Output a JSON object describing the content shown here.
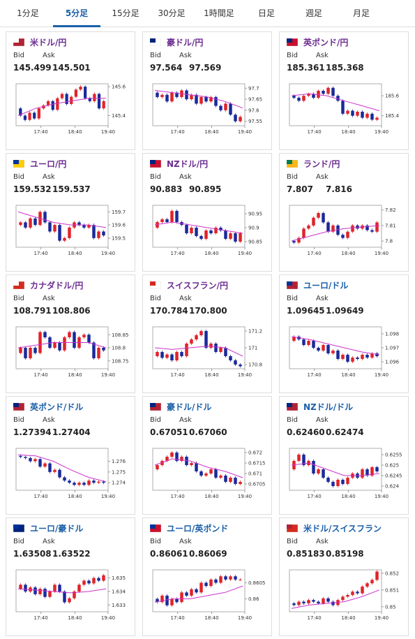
{
  "tabs": [
    "1分足",
    "5分足",
    "15分足",
    "30分足",
    "1時間足",
    "日足",
    "週足",
    "月足"
  ],
  "active_tab": 1,
  "bid_label": "Bid",
  "ask_label": "Ask",
  "x_labels": [
    "17:40",
    "18:40",
    "19:40"
  ],
  "cards": [
    {
      "title": "米ドル/円",
      "title_color": "#6b2c91",
      "bid": "145.499",
      "ask": "145.501",
      "ylim": [
        145.33,
        145.62
      ],
      "yticks": [
        145.6,
        145.4
      ],
      "closes": [
        145.45,
        145.4,
        145.37,
        145.42,
        145.38,
        145.45,
        145.47,
        145.5,
        145.44,
        145.52,
        145.55,
        145.48,
        145.53,
        145.58,
        145.6,
        145.52,
        145.5,
        145.55,
        145.45,
        145.5
      ],
      "ma": [
        145.4,
        145.45,
        145.48,
        145.5,
        145.52,
        145.52
      ]
    },
    {
      "title": "豪ドル/円",
      "title_color": "#6b2c91",
      "bid": "97.564",
      "ask": "97.569",
      "ylim": [
        97.53,
        97.72
      ],
      "yticks": [
        97.7,
        97.65,
        97.6,
        97.55
      ],
      "closes": [
        97.68,
        97.66,
        97.67,
        97.64,
        97.68,
        97.66,
        97.69,
        97.65,
        97.67,
        97.63,
        97.66,
        97.64,
        97.66,
        97.62,
        97.6,
        97.63,
        97.58,
        97.55,
        97.57
      ],
      "ma": [
        97.69,
        97.68,
        97.67,
        97.66,
        97.64,
        97.61
      ]
    },
    {
      "title": "英ポンド/円",
      "title_color": "#6b2c91",
      "bid": "185.361",
      "ask": "185.368",
      "ylim": [
        185.3,
        185.72
      ],
      "yticks": [
        185.6,
        185.4
      ],
      "closes": [
        185.6,
        185.58,
        185.55,
        185.6,
        185.62,
        185.58,
        185.65,
        185.62,
        185.68,
        185.6,
        185.55,
        185.42,
        185.45,
        185.4,
        185.44,
        185.38,
        185.42,
        185.36,
        185.38
      ],
      "ma": [
        185.6,
        185.62,
        185.6,
        185.55,
        185.5,
        185.45
      ]
    },
    {
      "title": "ユーロ/円",
      "title_color": "#6b2c91",
      "bid": "159.532",
      "ask": "159.537",
      "ylim": [
        159.43,
        159.75
      ],
      "yticks": [
        159.7,
        159.6,
        159.5
      ],
      "closes": [
        159.6,
        159.62,
        159.58,
        159.65,
        159.6,
        159.7,
        159.62,
        159.55,
        159.6,
        159.48,
        159.5,
        159.58,
        159.62,
        159.6,
        159.58,
        159.6,
        159.5,
        159.55,
        159.52
      ],
      "ma": [
        159.7,
        159.66,
        159.62,
        159.6,
        159.6,
        159.58
      ]
    },
    {
      "title": "NZドル/円",
      "title_color": "#6b2c91",
      "bid": "90.883",
      "ask": "90.895",
      "ylim": [
        90.83,
        90.98
      ],
      "yticks": [
        90.95,
        90.9,
        90.85
      ],
      "closes": [
        90.9,
        90.92,
        90.93,
        90.92,
        90.96,
        90.92,
        90.91,
        90.88,
        90.9,
        90.87,
        90.86,
        90.89,
        90.88,
        90.9,
        90.89,
        90.86,
        90.88,
        90.85,
        90.88
      ],
      "ma": [
        90.91,
        90.92,
        90.91,
        90.9,
        90.89,
        90.88
      ]
    },
    {
      "title": "ランド/円",
      "title_color": "#6b2c91",
      "bid": "7.807",
      "ask": "7.816",
      "ylim": [
        7.796,
        7.823
      ],
      "yticks": [
        7.82,
        7.81,
        7.8
      ],
      "closes": [
        7.8,
        7.799,
        7.802,
        7.808,
        7.81,
        7.815,
        7.818,
        7.812,
        7.806,
        7.81,
        7.804,
        7.802,
        7.806,
        7.81,
        7.808,
        7.81,
        7.807,
        7.806,
        7.812
      ],
      "ma": [
        7.8,
        7.803,
        7.806,
        7.808,
        7.809,
        7.81
      ]
    },
    {
      "title": "カナダドル/円",
      "title_color": "#6b2c91",
      "bid": "108.791",
      "ask": "108.806",
      "ylim": [
        108.72,
        108.88
      ],
      "yticks": [
        108.85,
        108.8,
        108.75
      ],
      "closes": [
        108.78,
        108.8,
        108.76,
        108.8,
        108.78,
        108.86,
        108.84,
        108.8,
        108.82,
        108.79,
        108.84,
        108.86,
        108.8,
        108.84,
        108.85,
        108.82,
        108.76,
        108.8,
        108.79
      ],
      "ma": [
        108.8,
        108.81,
        108.82,
        108.82,
        108.82,
        108.8
      ]
    },
    {
      "title": "スイスフラン/円",
      "title_color": "#6b2c91",
      "bid": "170.784",
      "ask": "170.800",
      "ylim": [
        170.75,
        171.25
      ],
      "yticks": [
        171.2,
        171,
        170.8
      ],
      "closes": [
        170.9,
        170.95,
        170.88,
        170.92,
        170.85,
        170.95,
        170.9,
        171.05,
        171.1,
        171.15,
        171.2,
        171.0,
        171.05,
        170.95,
        171.0,
        170.9,
        170.85,
        170.8,
        170.78
      ],
      "ma": [
        171.0,
        170.98,
        171.0,
        171.02,
        171.0,
        170.9
      ]
    },
    {
      "title": "ユーロ/ドル",
      "title_color": "#1a5fa8",
      "bid": "1.09645",
      "ask": "1.09649",
      "ylim": [
        1.0955,
        1.0985
      ],
      "yticks": [
        1.098,
        1.097,
        1.096
      ],
      "closes": [
        1.0975,
        1.0978,
        1.0976,
        1.0972,
        1.0975,
        1.097,
        1.0968,
        1.0972,
        1.0966,
        1.0968,
        1.0962,
        1.0965,
        1.096,
        1.0963,
        1.0962,
        1.0965,
        1.0963,
        1.0966,
        1.0964
      ],
      "ma": [
        1.0978,
        1.0976,
        1.0973,
        1.097,
        1.0967,
        1.0965
      ]
    },
    {
      "title": "英ポンド/ドル",
      "title_color": "#1a5fa8",
      "bid": "1.27394",
      "ask": "1.27404",
      "ylim": [
        1.2733,
        1.2772
      ],
      "yticks": [
        1.276,
        1.275,
        1.274
      ],
      "closes": [
        1.2765,
        1.2764,
        1.2763,
        1.276,
        1.2762,
        1.2755,
        1.2758,
        1.275,
        1.2752,
        1.2745,
        1.2742,
        1.274,
        1.2738,
        1.274,
        1.2738,
        1.2742,
        1.274,
        1.2741,
        1.274
      ],
      "ma": [
        1.2766,
        1.2765,
        1.276,
        1.2752,
        1.2745,
        1.2741
      ]
    },
    {
      "title": "豪ドル/ドル",
      "title_color": "#1a5fa8",
      "bid": "0.67051",
      "ask": "0.67060",
      "ylim": [
        0.6702,
        0.6722
      ],
      "yticks": [
        0.672,
        0.6715,
        0.671,
        0.6705
      ],
      "closes": [
        0.6712,
        0.6714,
        0.6716,
        0.6718,
        0.672,
        0.6716,
        0.6718,
        0.6714,
        0.6715,
        0.6711,
        0.6709,
        0.671,
        0.6712,
        0.6708,
        0.6709,
        0.6706,
        0.6708,
        0.6705,
        0.6706
      ],
      "ma": [
        0.6714,
        0.6717,
        0.6716,
        0.6713,
        0.6711,
        0.6708
      ]
    },
    {
      "title": "NZドル/ドル",
      "title_color": "#1a5fa8",
      "bid": "0.62460",
      "ask": "0.62474",
      "ylim": [
        0.6238,
        0.6258
      ],
      "yticks": [
        0.6255,
        0.625,
        0.6245,
        0.624
      ],
      "closes": [
        0.6248,
        0.6252,
        0.6255,
        0.625,
        0.6252,
        0.6246,
        0.6248,
        0.6244,
        0.6242,
        0.624,
        0.6243,
        0.6241,
        0.6244,
        0.6246,
        0.6244,
        0.6248,
        0.6245,
        0.6249,
        0.6247
      ],
      "ma": [
        0.625,
        0.6251,
        0.6248,
        0.6245,
        0.6245,
        0.6246
      ]
    },
    {
      "title": "ユーロ/豪ドル",
      "title_color": "#1a5fa8",
      "bid": "1.63508",
      "ask": "1.63522",
      "ylim": [
        1.6325,
        1.6356
      ],
      "yticks": [
        1.635,
        1.634,
        1.633
      ],
      "closes": [
        1.6342,
        1.6345,
        1.634,
        1.6343,
        1.6338,
        1.6342,
        1.6336,
        1.634,
        1.6345,
        1.634,
        1.6332,
        1.6335,
        1.634,
        1.6345,
        1.6348,
        1.6346,
        1.635,
        1.6348,
        1.6352
      ],
      "ma": [
        1.6342,
        1.6341,
        1.634,
        1.6339,
        1.634,
        1.6342
      ]
    },
    {
      "title": "ユーロ/英ポンド",
      "title_color": "#1a5fa8",
      "bid": "0.86061",
      "ask": "0.86069",
      "ylim": [
        0.8596,
        0.8609
      ],
      "yticks": [
        0.8605,
        0.86
      ],
      "closes": [
        0.86,
        0.8599,
        0.8601,
        0.8598,
        0.86,
        0.8599,
        0.8602,
        0.8601,
        0.8603,
        0.8602,
        0.8605,
        0.8604,
        0.8606,
        0.8605,
        0.8607,
        0.8606,
        0.8607,
        0.8606,
        0.8606
      ],
      "ma": [
        0.8599,
        0.86,
        0.86,
        0.8601,
        0.8602,
        0.8604
      ]
    },
    {
      "title": "米ドル/スイスフラン",
      "title_color": "#1a5fa8",
      "bid": "0.85183",
      "ask": "0.85198",
      "ylim": [
        0.8497,
        0.8522
      ],
      "yticks": [
        0.852,
        0.851,
        0.85
      ],
      "closes": [
        0.8502,
        0.8501,
        0.8503,
        0.8502,
        0.8504,
        0.8503,
        0.8502,
        0.8505,
        0.8503,
        0.8501,
        0.8504,
        0.8506,
        0.8507,
        0.8509,
        0.8508,
        0.8512,
        0.8514,
        0.8516,
        0.8521
      ],
      "ma": [
        0.8499,
        0.8501,
        0.8502,
        0.8503,
        0.8506,
        0.851
      ]
    }
  ]
}
